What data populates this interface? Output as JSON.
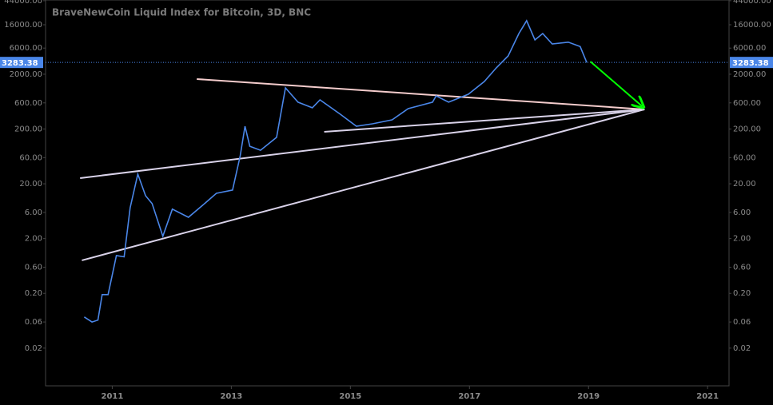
{
  "chart_data": {
    "type": "line",
    "title": "BraveNewCoin Liquid Index for Bitcoin, 3D, BNC",
    "log_scale": true,
    "xlim": [
      2009.88,
      2021.36
    ],
    "xticks": [
      2011,
      2013,
      2015,
      2017,
      2019,
      2021
    ],
    "ylim": [
      0.0041,
      45300
    ],
    "yticks": [
      {
        "value": 44000,
        "label": "44000.00"
      },
      {
        "value": 16000,
        "label": "16000.00"
      },
      {
        "value": 6000,
        "label": "6000.00"
      },
      {
        "value": 2000,
        "label": "2000.00"
      },
      {
        "value": 600,
        "label": "600.00"
      },
      {
        "value": 200,
        "label": "200.00"
      },
      {
        "value": 60,
        "label": "60.00"
      },
      {
        "value": 20,
        "label": "20.00"
      },
      {
        "value": 6,
        "label": "6.00"
      },
      {
        "value": 2,
        "label": "2.00"
      },
      {
        "value": 0.6,
        "label": "0.60"
      },
      {
        "value": 0.2,
        "label": "0.20"
      },
      {
        "value": 0.06,
        "label": "0.06"
      },
      {
        "value": 0.02,
        "label": "0.02"
      }
    ],
    "series": [
      {
        "color": "#4a86e8",
        "x": [
          2010.53,
          2010.66,
          2010.76,
          2010.83,
          2010.93,
          2011.07,
          2011.2,
          2011.3,
          2011.43,
          2011.56,
          2011.67,
          2011.85,
          2012.01,
          2012.28,
          2012.55,
          2012.75,
          2013.02,
          2013.15,
          2013.23,
          2013.31,
          2013.49,
          2013.76,
          2013.91,
          2014.12,
          2014.36,
          2014.49,
          2014.83,
          2015.1,
          2015.37,
          2015.7,
          2015.97,
          2016.38,
          2016.44,
          2016.65,
          2016.98,
          2017.25,
          2017.45,
          2017.65,
          2017.83,
          2017.96,
          2018.1,
          2018.23,
          2018.39,
          2018.66,
          2018.86,
          2018.97
        ],
        "values": [
          0.074,
          0.06,
          0.065,
          0.19,
          0.19,
          0.98,
          0.93,
          7.3,
          30,
          12.1,
          8.7,
          2.2,
          6.9,
          4.9,
          8.7,
          13.4,
          15.4,
          65,
          225,
          97,
          82,
          141,
          1127,
          617,
          488,
          682,
          372,
          225,
          249,
          294,
          471,
          617,
          807,
          617,
          863,
          1476,
          2612,
          4315,
          11066,
          19000,
          8450,
          11066,
          7145,
          7700,
          6400,
          3283.38
        ]
      }
    ],
    "last_price": 3283.38,
    "trendlines": [
      {
        "color": "#f4cccc",
        "x": [
          2012.42,
          2019.94
        ],
        "values": [
          1633,
          456
        ]
      },
      {
        "color": "#d9d2e9",
        "x": [
          2014.56,
          2019.94
        ],
        "values": [
          178,
          456
        ]
      },
      {
        "color": "#d9d2e9",
        "x": [
          2010.46,
          2019.94
        ],
        "values": [
          25.4,
          456
        ]
      },
      {
        "color": "#d9d2e9",
        "x": [
          2010.49,
          2019.94
        ],
        "values": [
          0.8,
          456
        ]
      },
      {
        "color": "#00ff00",
        "x": [
          2019.03,
          2019.9
        ],
        "values": [
          3420,
          521
        ]
      }
    ]
  }
}
